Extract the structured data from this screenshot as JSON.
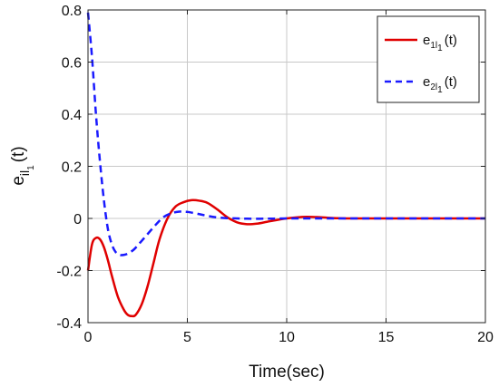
{
  "chart_data": {
    "type": "line",
    "xlabel": "Time(sec)",
    "ylabel": {
      "base": "e",
      "sub": "il",
      "subsub": "1",
      "suffix": "(t)"
    },
    "xlim": [
      0,
      20
    ],
    "ylim": [
      -0.4,
      0.8
    ],
    "xticks": [
      0,
      5,
      10,
      15,
      20
    ],
    "yticks": [
      -0.4,
      -0.2,
      0,
      0.2,
      0.4,
      0.6,
      0.8
    ],
    "xtick_labels": [
      "0",
      "5",
      "10",
      "15",
      "20"
    ],
    "ytick_labels": [
      "-0.4",
      "-0.2",
      "0",
      "0.2",
      "0.4",
      "0.6",
      "0.8"
    ],
    "grid": true,
    "legend_position": "top-right",
    "series": [
      {
        "legend": {
          "base": "e",
          "sub": "1l",
          "subsub": "1",
          "suffix": "(t)"
        },
        "color": "#e00000",
        "style": "solid",
        "x": [
          0,
          0.2,
          0.4,
          0.6,
          0.8,
          1.0,
          1.2,
          1.5,
          1.8,
          2.0,
          2.2,
          2.4,
          2.7,
          3.0,
          3.3,
          3.6,
          4.0,
          4.4,
          4.8,
          5.2,
          5.6,
          6.0,
          6.5,
          7.0,
          7.5,
          8.0,
          8.5,
          9.0,
          9.5,
          10.0,
          10.5,
          11.0,
          11.5,
          12.0,
          12.5,
          13.0,
          14.0,
          15.0,
          16.0,
          17.0,
          18.0,
          19.0,
          20.0
        ],
        "y": [
          -0.2,
          -0.1,
          -0.075,
          -0.08,
          -0.11,
          -0.16,
          -0.22,
          -0.3,
          -0.35,
          -0.37,
          -0.375,
          -0.37,
          -0.33,
          -0.26,
          -0.17,
          -0.08,
          0.0,
          0.045,
          0.062,
          0.07,
          0.068,
          0.06,
          0.035,
          0.005,
          -0.015,
          -0.022,
          -0.02,
          -0.013,
          -0.006,
          0.0,
          0.004,
          0.006,
          0.005,
          0.003,
          0.001,
          0.0,
          0.0,
          0.0,
          0.0,
          0.0,
          0.0,
          0.0,
          0.0
        ]
      },
      {
        "legend": {
          "base": "e",
          "sub": "2l",
          "subsub": "1",
          "suffix": "(t)"
        },
        "color": "#1a1aff",
        "style": "dashed",
        "x": [
          0,
          0.2,
          0.4,
          0.6,
          0.8,
          1.0,
          1.2,
          1.4,
          1.6,
          1.8,
          2.0,
          2.3,
          2.6,
          3.0,
          3.4,
          3.8,
          4.2,
          4.6,
          5.0,
          5.5,
          6.0,
          6.5,
          7.0,
          7.5,
          8.0,
          9.0,
          10.0,
          11.0,
          12.0,
          14.0,
          16.0,
          18.0,
          20.0
        ],
        "y": [
          0.79,
          0.62,
          0.4,
          0.22,
          0.07,
          -0.04,
          -0.1,
          -0.13,
          -0.14,
          -0.14,
          -0.135,
          -0.12,
          -0.095,
          -0.06,
          -0.025,
          0.005,
          0.02,
          0.026,
          0.025,
          0.018,
          0.01,
          0.004,
          0.001,
          0.0,
          -0.001,
          -0.001,
          0.0,
          0.0,
          0.0,
          0.0,
          0.0,
          0.0,
          0.0
        ]
      }
    ]
  }
}
